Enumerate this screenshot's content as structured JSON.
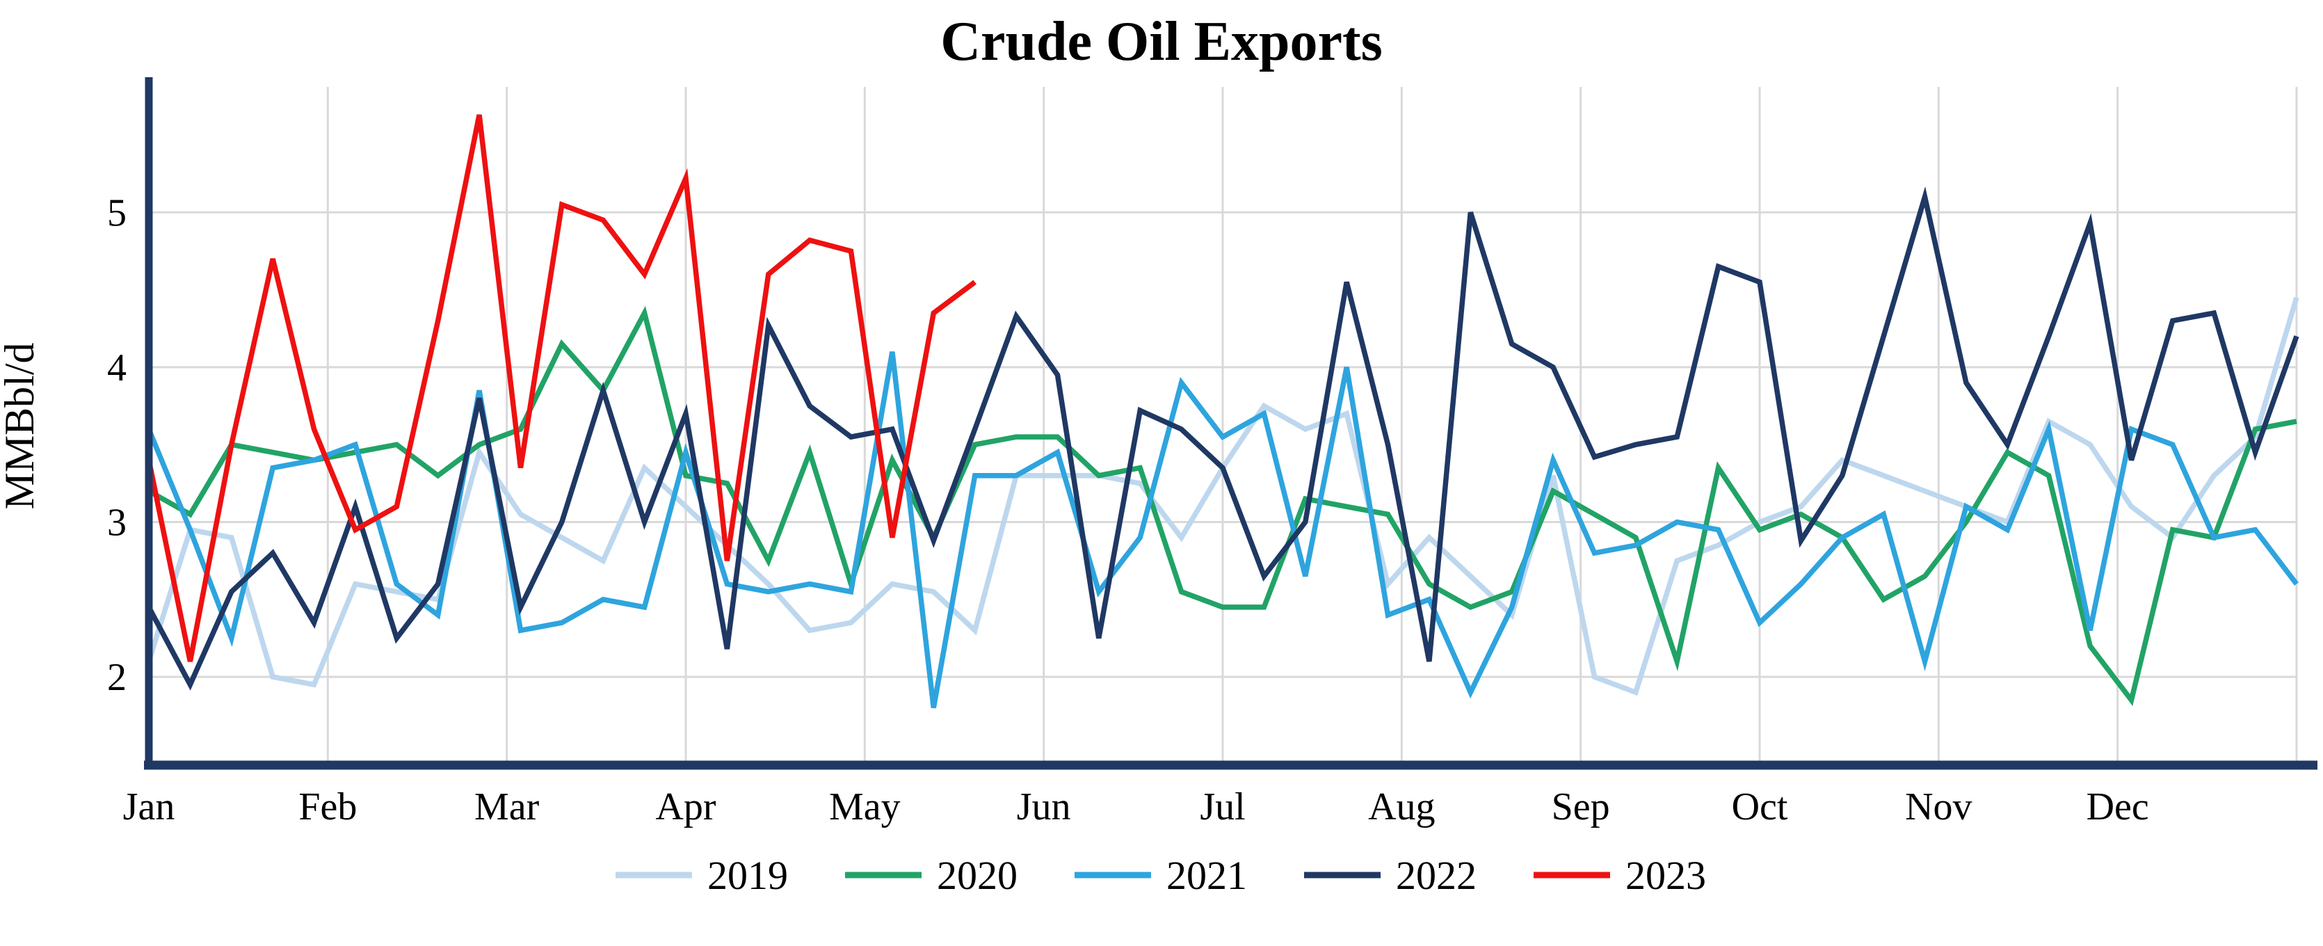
{
  "chart_data": {
    "type": "line",
    "title": "Crude Oil Exports",
    "xlabel": "",
    "ylabel": "MMBbl/d",
    "x_unit": "week-of-year",
    "weeks_per_year": 53,
    "categories_x": [
      "Jan",
      "Feb",
      "Mar",
      "Apr",
      "May",
      "Jun",
      "Jul",
      "Aug",
      "Sep",
      "Oct",
      "Nov",
      "Dec"
    ],
    "y_ticks": [
      2,
      3,
      4,
      5
    ],
    "ylim": [
      1.43,
      5.81
    ],
    "grid": true,
    "legend_position": "bottom",
    "series": [
      {
        "name": "2019",
        "color": "#BDD7EE",
        "values": [
          2.1,
          2.95,
          2.9,
          2.0,
          1.95,
          2.6,
          2.55,
          2.5,
          3.45,
          3.05,
          2.9,
          2.75,
          3.35,
          3.1,
          2.85,
          2.6,
          2.3,
          2.35,
          2.6,
          2.55,
          2.3,
          3.3,
          3.3,
          3.3,
          3.25,
          2.9,
          3.35,
          3.75,
          3.6,
          3.7,
          2.6,
          2.9,
          2.65,
          2.4,
          3.3,
          2.0,
          1.9,
          2.75,
          2.85,
          3.0,
          3.1,
          3.4,
          3.3,
          3.2,
          3.1,
          3.0,
          3.65,
          3.5,
          3.1,
          2.9,
          3.3,
          3.55,
          4.45
        ]
      },
      {
        "name": "2020",
        "color": "#21A366",
        "values": [
          3.2,
          3.05,
          3.5,
          3.45,
          3.4,
          3.45,
          3.5,
          3.3,
          3.5,
          3.6,
          4.15,
          3.85,
          4.35,
          3.3,
          3.25,
          2.75,
          3.45,
          2.6,
          3.4,
          2.9,
          3.5,
          3.55,
          3.55,
          3.3,
          3.35,
          2.55,
          2.45,
          2.45,
          3.15,
          3.1,
          3.05,
          2.6,
          2.45,
          2.55,
          3.2,
          3.05,
          2.9,
          2.1,
          3.35,
          2.95,
          3.05,
          2.9,
          2.5,
          2.65,
          3.0,
          3.45,
          3.3,
          2.2,
          1.85,
          2.95,
          2.9,
          3.6,
          3.65
        ]
      },
      {
        "name": "2021",
        "color": "#2EA4DE",
        "values": [
          3.6,
          2.95,
          2.25,
          3.35,
          3.4,
          3.5,
          2.6,
          2.4,
          3.85,
          2.3,
          2.35,
          2.5,
          2.45,
          3.45,
          2.6,
          2.55,
          2.6,
          2.55,
          4.1,
          1.8,
          3.3,
          3.3,
          3.45,
          2.55,
          2.9,
          3.9,
          3.55,
          3.7,
          2.65,
          4.0,
          2.4,
          2.5,
          1.9,
          2.45,
          3.4,
          2.8,
          2.85,
          3.0,
          2.95,
          2.35,
          2.6,
          2.9,
          3.05,
          2.1,
          3.1,
          2.95,
          3.6,
          2.3,
          3.6,
          3.5,
          2.9,
          2.95,
          2.6
        ]
      },
      {
        "name": "2022",
        "color": "#1F3864",
        "values": [
          2.45,
          1.95,
          2.55,
          2.8,
          2.35,
          3.1,
          2.25,
          2.6,
          3.8,
          2.45,
          3.0,
          3.85,
          3.0,
          3.7,
          2.18,
          4.27,
          3.75,
          3.55,
          3.6,
          2.88,
          3.6,
          4.33,
          3.95,
          2.25,
          3.72,
          3.6,
          3.35,
          2.65,
          3.0,
          4.55,
          3.5,
          2.1,
          5.0,
          4.15,
          4.0,
          3.42,
          3.5,
          3.55,
          4.65,
          4.55,
          2.88,
          3.3,
          4.2,
          5.1,
          3.9,
          3.5,
          4.2,
          4.93,
          3.4,
          4.3,
          4.35,
          3.45,
          4.2
        ]
      },
      {
        "name": "2023",
        "color": "#EE1111",
        "values": [
          3.4,
          2.1,
          3.5,
          4.7,
          3.6,
          2.95,
          3.1,
          4.3,
          5.63,
          3.35,
          5.05,
          4.95,
          4.6,
          5.22,
          2.75,
          4.6,
          4.82,
          4.75,
          2.9,
          4.35,
          4.55
        ]
      }
    ]
  },
  "styles": {
    "axis_color": "#1F3864",
    "grid_color": "#D9D9D9",
    "text_color": "#000000",
    "background": "#FFFFFF"
  }
}
